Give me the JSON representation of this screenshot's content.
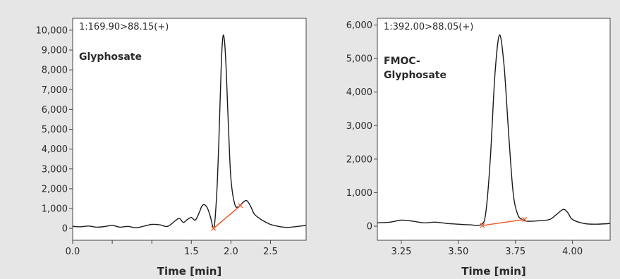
{
  "colors": {
    "background": "#e6e6e6",
    "plot_background": "#ffffff",
    "trace": "#1a1a1a",
    "baseline": "#f05a28",
    "frame": "#444444"
  },
  "chart_data": [
    {
      "type": "line",
      "title": "1:169.90>88.15(+)",
      "annotation": "Glyphosate",
      "xlabel": "Time [min]",
      "ylabel": "",
      "xlim": [
        0.0,
        2.95
      ],
      "ylim": [
        -600,
        10600
      ],
      "xticks": [
        0.0,
        0.5,
        1.0,
        1.5,
        2.0,
        2.5
      ],
      "xtick_labels": [
        "0.0",
        "",
        "",
        "1.5",
        "2.0",
        "2.5"
      ],
      "yticks": [
        0,
        1000,
        2000,
        3000,
        4000,
        5000,
        6000,
        7000,
        8000,
        9000,
        10000
      ],
      "ytick_labels": [
        "0",
        "1,000",
        "2,000",
        "3,000",
        "4,000",
        "5,000",
        "6,000",
        "7,000",
        "8,000",
        "9,000",
        "10,000"
      ],
      "grid": false,
      "series": [
        {
          "x": [
            0.0,
            0.1,
            0.2,
            0.3,
            0.4,
            0.5,
            0.6,
            0.7,
            0.8,
            0.9,
            1.0,
            1.1,
            1.2,
            1.3,
            1.35,
            1.4,
            1.45,
            1.5,
            1.55,
            1.6,
            1.63,
            1.66,
            1.7,
            1.74,
            1.78,
            1.8,
            1.83,
            1.86,
            1.88,
            1.9,
            1.92,
            1.94,
            1.97,
            2.0,
            2.05,
            2.1,
            2.15,
            2.2,
            2.25,
            2.3,
            2.4,
            2.5,
            2.6,
            2.7,
            2.8,
            2.95
          ],
          "y": [
            100,
            80,
            120,
            60,
            90,
            150,
            60,
            100,
            30,
            110,
            200,
            180,
            100,
            400,
            500,
            300,
            450,
            550,
            420,
            800,
            1100,
            1200,
            1050,
            600,
            0,
            500,
            2500,
            6000,
            8500,
            9700,
            9400,
            8000,
            5000,
            2500,
            1200,
            1100,
            1300,
            1400,
            1100,
            700,
            400,
            200,
            100,
            50,
            80,
            150
          ]
        }
      ],
      "baseline": {
        "x": [
          1.78,
          2.12
        ],
        "y": [
          0,
          1150
        ]
      }
    },
    {
      "type": "line",
      "title": "1:392.00>88.05(+)",
      "annotation": [
        "FMOC-",
        "Glyphosate"
      ],
      "xlabel": "Time [min]",
      "ylabel": "",
      "xlim": [
        3.145,
        4.165
      ],
      "ylim": [
        -420,
        6200
      ],
      "xticks": [
        3.25,
        3.5,
        3.75,
        4.0
      ],
      "xtick_labels": [
        "3.25",
        "3.50",
        "3.75",
        "4.00"
      ],
      "yticks": [
        0,
        1000,
        2000,
        3000,
        4000,
        5000,
        6000
      ],
      "ytick_labels": [
        "0",
        "1,000",
        "2,000",
        "3,000",
        "4,000",
        "5,000",
        "6,000"
      ],
      "grid": false,
      "series": [
        {
          "x": [
            3.145,
            3.2,
            3.25,
            3.3,
            3.35,
            3.4,
            3.45,
            3.5,
            3.55,
            3.6,
            3.62,
            3.64,
            3.66,
            3.68,
            3.7,
            3.72,
            3.74,
            3.76,
            3.78,
            3.8,
            3.85,
            3.9,
            3.93,
            3.96,
            3.98,
            4.0,
            4.05,
            4.1,
            4.165
          ],
          "y": [
            100,
            120,
            180,
            150,
            100,
            120,
            80,
            60,
            40,
            50,
            400,
            2000,
            4500,
            5700,
            4800,
            2800,
            1000,
            350,
            200,
            150,
            160,
            200,
            350,
            500,
            400,
            200,
            80,
            60,
            80
          ]
        }
      ],
      "baseline": {
        "x": [
          3.605,
          3.79
        ],
        "y": [
          20,
          200
        ]
      }
    }
  ]
}
